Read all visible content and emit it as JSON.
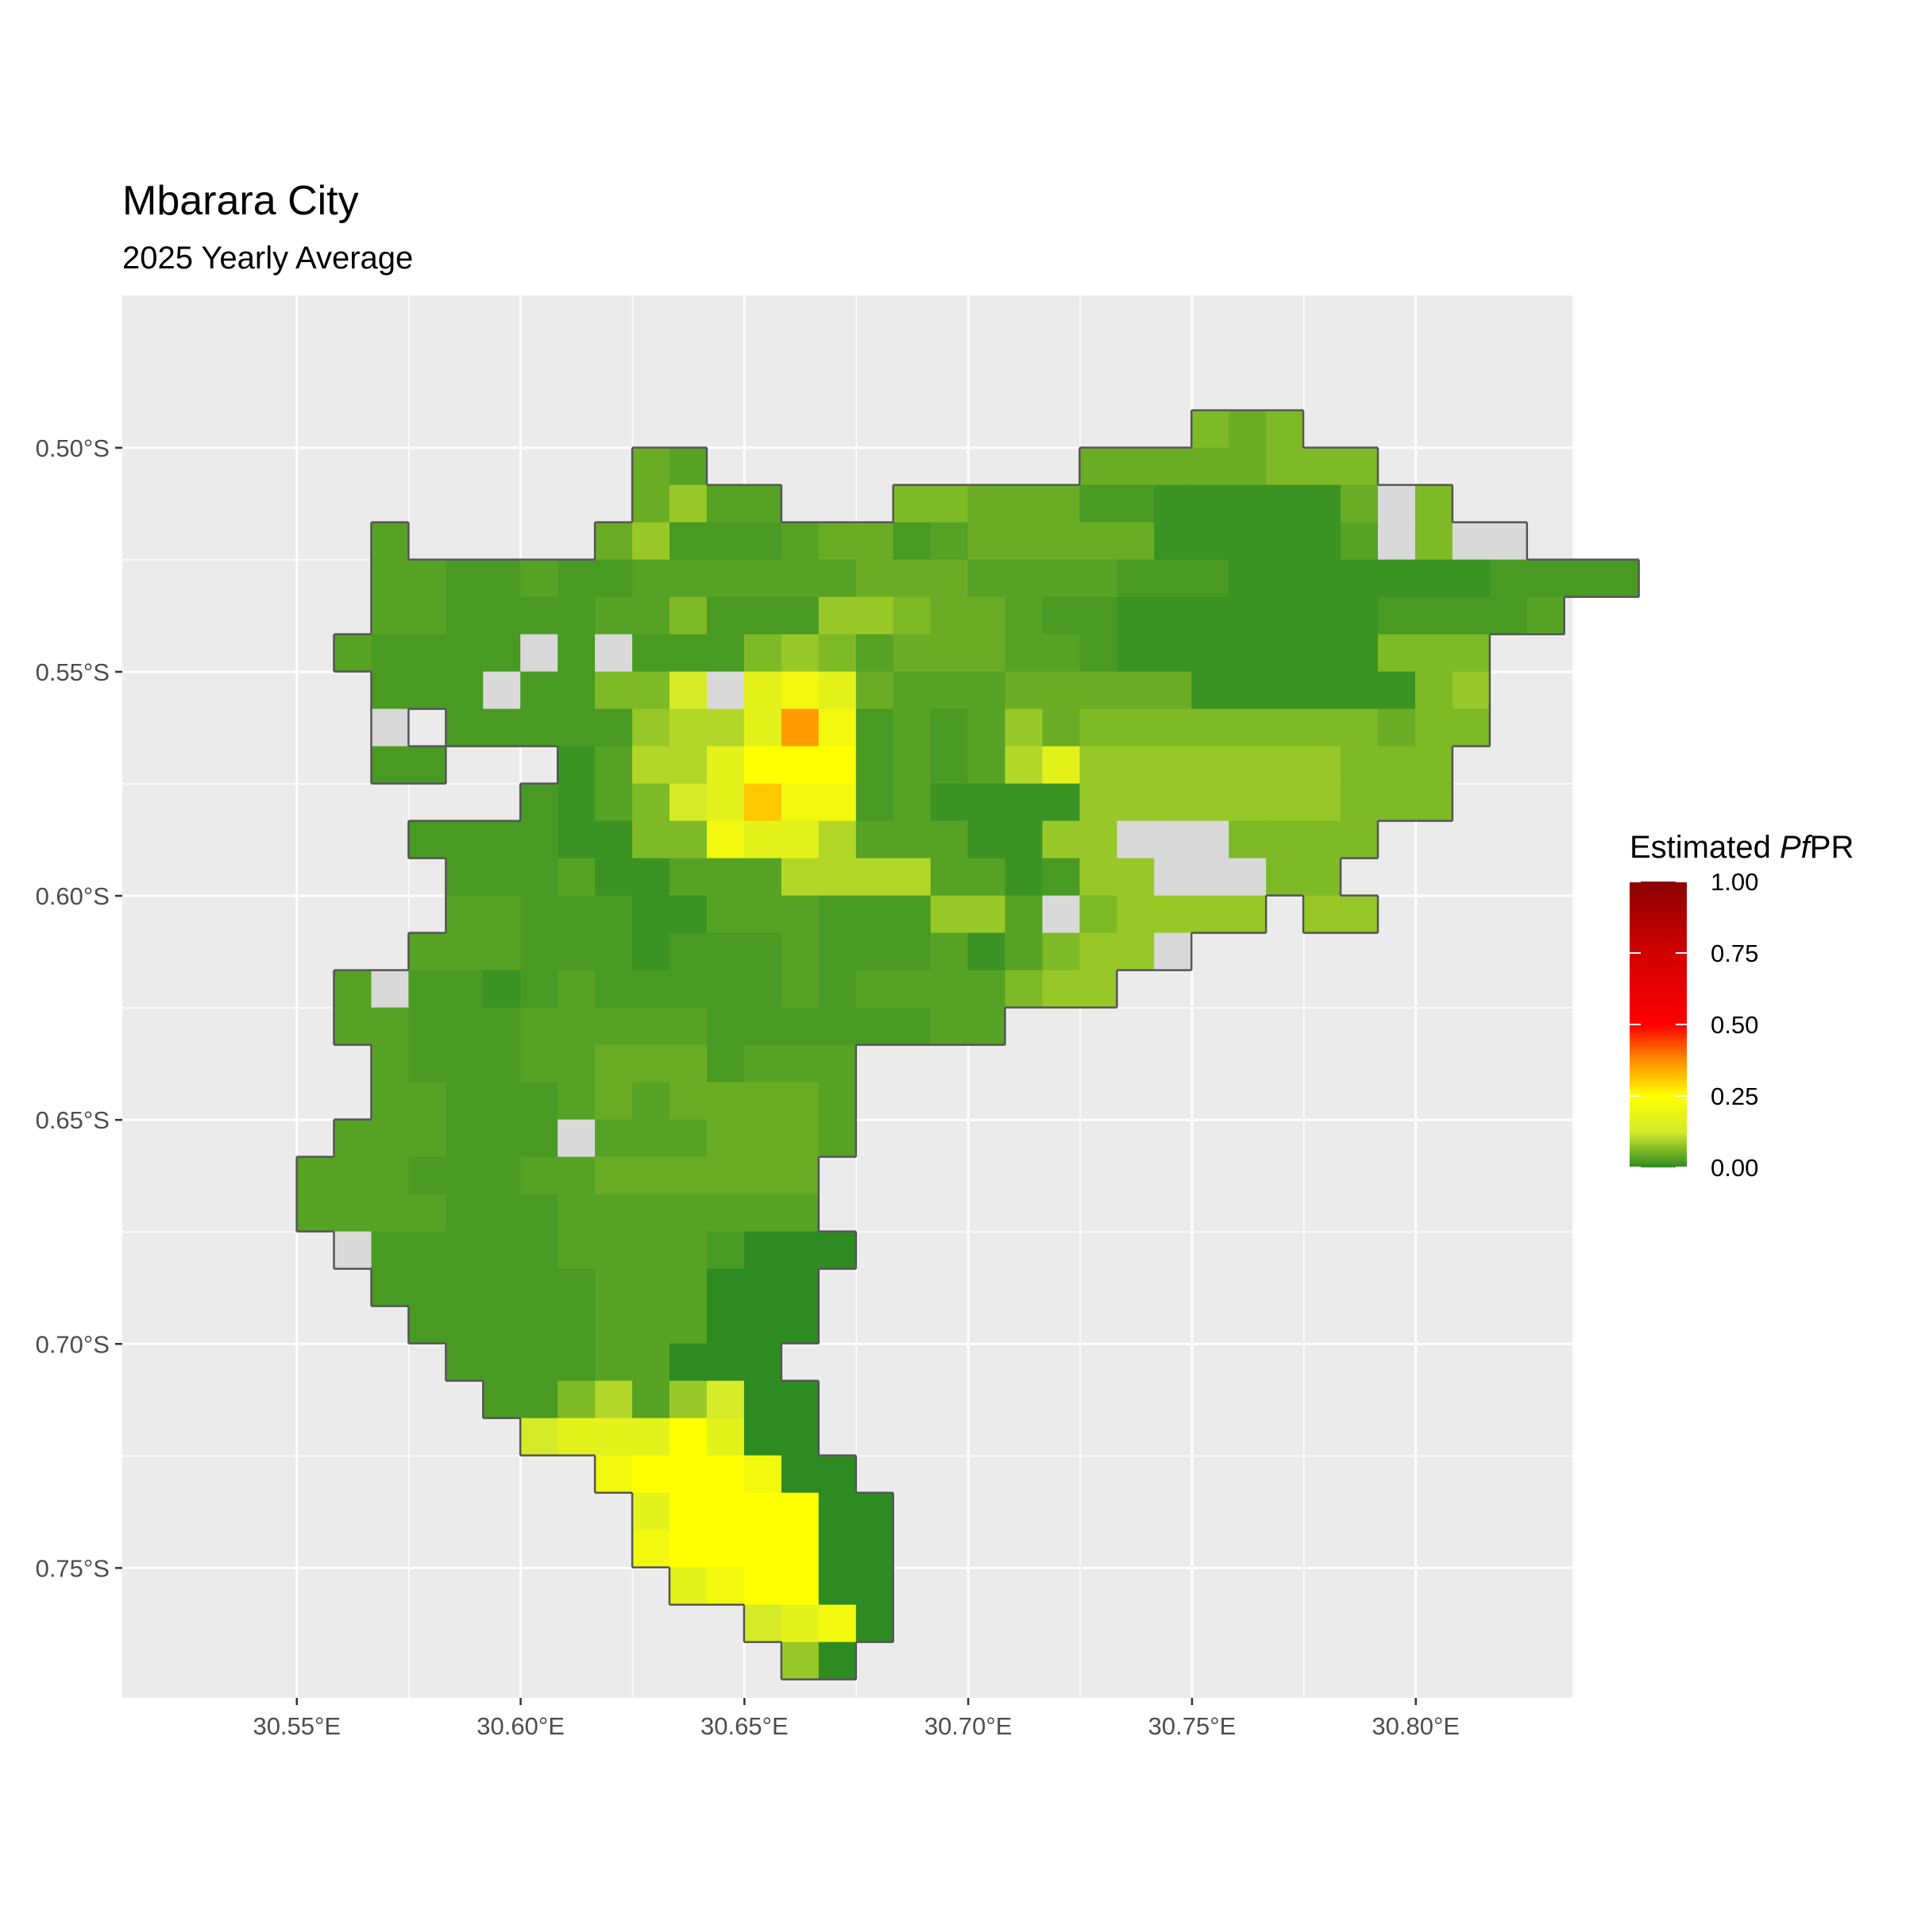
{
  "chart_data": {
    "type": "heatmap",
    "title": "Mbarara City",
    "subtitle": "2025 Yearly Average",
    "x_ticks": [
      "30.55°E",
      "30.60°E",
      "30.65°E",
      "30.70°E",
      "30.75°E",
      "30.80°E"
    ],
    "x_tick_values": [
      30.55,
      30.6,
      30.65,
      30.7,
      30.75,
      30.8
    ],
    "y_ticks": [
      "0.50°S",
      "0.55°S",
      "0.60°S",
      "0.65°S",
      "0.70°S",
      "0.75°S"
    ],
    "y_tick_values": [
      -0.5,
      -0.55,
      -0.6,
      -0.65,
      -0.7,
      -0.75
    ],
    "xlim": [
      30.511,
      30.835
    ],
    "ylim": [
      -0.779,
      -0.466
    ],
    "grid": true,
    "legend": {
      "title_prefix": "Estimated ",
      "title_italic": "Pf",
      "title_suffix": "PR",
      "placement": "right",
      "labels": [
        "1.00",
        "0.75",
        "0.50",
        "0.25",
        "0.00"
      ],
      "values": [
        1.0,
        0.75,
        0.5,
        0.25,
        0.0
      ]
    },
    "color_scale": {
      "stops": [
        {
          "value": 0.0,
          "color": "#2e8b22"
        },
        {
          "value": 0.125,
          "color": "#d4ea2a"
        },
        {
          "value": 0.25,
          "color": "#ffff00"
        },
        {
          "value": 0.375,
          "color": "#ff8c00"
        },
        {
          "value": 0.5,
          "color": "#ff0000"
        },
        {
          "value": 0.75,
          "color": "#d20000"
        },
        {
          "value": 1.0,
          "color": "#8b0000"
        }
      ],
      "missing_color": "#d9d9d9",
      "boundary_color": "#555555"
    },
    "grid_cells": {
      "x0": 30.5333,
      "y0": -0.4833,
      "dx": 0.00833,
      "dy": 0.00833,
      "legend_codes": {
        "Z": "missing",
        "a": 0.0,
        "b": 0.01,
        "c": 0.02,
        "d": 0.03,
        "e": 0.045,
        "f": 0.06,
        "g": 0.08,
        "h": 0.1,
        "i": 0.13,
        "j": 0.17,
        "k": 0.21,
        "l": 0.25,
        "m": 0.31,
        "n": 0.36
      },
      "rows": [
        "........................................",
        "..........................fef...........",
        "...........ed..........eeeeefff.........",
        "...........egdd...ffeeeccbbbbbeZf.......",
        "....d.....egcccdeecdeeeeebbbbbdZfZZ.....",
        "....ddccdccddddddeeeddddcccbbbbbbbcccc..",
        "....ddccccddfcccggfeedccbbbbbbbccccd....",
        "...dccccZcZcccfgfdeeeddcbbbbbbbfff......",
        "....cccZccffiZjkjedddeeeeebbbbbbfg......",
        "....Z.cccccghhjnkcdcdgeffffffffeff......",
        "....cc...bdhhjlllcdcdhjgggggggfff.......",
        "........cbdfijmkkcdbbbbgggggggfff.......",
        ".....ccccbbffkjjhdddbbggZZZffff.........",
        "......cccdbbdddhhhhddbcggZZZff..........",
        "......ddcccbbdddcccggdZfgggg.gg.........",
        ".....dddcccbcccdcccdbdfggZ..............",
        "...dZccbcdcccccdcddddfgg................",
        "...ddcccdddddccccccdd...................",
        "....dcccddeeecddd.......................",
        "....ddcccdedeeeed.......................",
        "...dddcccZdddeeed.......................",
        "..dddcccddeeeeee........................",
        "..ddddcccddddddd........................",
        "...Zcccccddddcaaa.......................",
        "....ccccccdddaaa........................",
        ".....cccccdddaaa........................",
        "......ccccddaaa.........................",
        ".......ccfhdgiaa........................",
        "........ijjjljaa........................",
        "..........klllkaa.......................",
        "...........jllllaa......................",
        "...........kllllaa......................",
        "............jkllaa......................",
        "..............ijka......................",
        "...............ga......................."
      ]
    }
  }
}
